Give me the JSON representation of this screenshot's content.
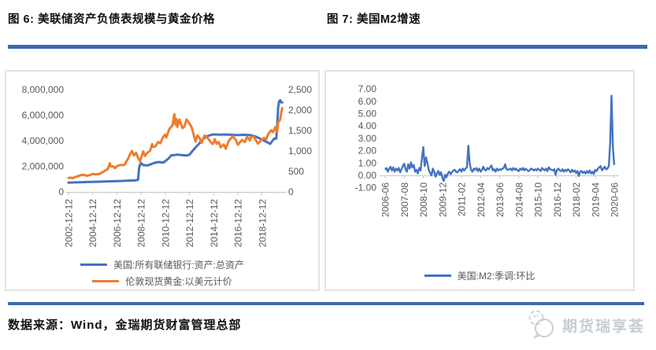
{
  "header": {
    "fig6_title": "图 6: 美联储资产负债表规模与黄金价格",
    "fig7_title": "图 7: 美国M2增速"
  },
  "footer": {
    "source": "数据来源：Wind，金瑞期货财富管理总部",
    "logo_text": "期货瑞享荟",
    "logo_icon": "megaphone-bubbles-icon"
  },
  "colors": {
    "divider_blue": "#3D68B0",
    "series_blue": "#4472C4",
    "series_orange": "#ED7D31",
    "axis_line": "#c6c6c6",
    "axis_text": "#595959",
    "logo_gray": "#c8cdd4"
  },
  "chart_data": [
    {
      "type": "line",
      "title": "图 6: 美联储资产负债表规模与黄金价格",
      "grid": false,
      "legend_position": "bottom",
      "x_range": [
        "2002-12",
        "2020-08"
      ],
      "x_tick_labels": [
        "2002-12-12",
        "2004-12-12",
        "2006-12-12",
        "2008-12-12",
        "2010-12-12",
        "2012-12-12",
        "2014-12-12",
        "2016-12-12",
        "2018-12-12"
      ],
      "y_left": {
        "range": [
          0,
          8000000
        ],
        "ticks": [
          "0",
          "2,000,000",
          "4,000,000",
          "6,000,000",
          "8,000,000"
        ]
      },
      "y_right": {
        "range": [
          0,
          2500
        ],
        "ticks": [
          "0",
          "500",
          "1,000",
          "1,500",
          "2,000",
          "2,500"
        ]
      },
      "series": [
        {
          "name": "美国:所有联储银行:资产:总资产",
          "color": "#4472C4",
          "axis": "left",
          "points": [
            [
              "2002-12",
              725000
            ],
            [
              "2003-06",
              745000
            ],
            [
              "2003-12",
              760000
            ],
            [
              "2004-06",
              775000
            ],
            [
              "2004-12",
              790000
            ],
            [
              "2005-06",
              800000
            ],
            [
              "2005-12",
              815000
            ],
            [
              "2006-06",
              830000
            ],
            [
              "2006-12",
              850000
            ],
            [
              "2007-06",
              860000
            ],
            [
              "2007-12",
              885000
            ],
            [
              "2008-03",
              890000
            ],
            [
              "2008-06",
              900000
            ],
            [
              "2008-09",
              950000
            ],
            [
              "2008-10",
              1850000
            ],
            [
              "2008-11",
              2150000
            ],
            [
              "2008-12",
              2250000
            ],
            [
              "2009-02",
              2100000
            ],
            [
              "2009-04",
              2090000
            ],
            [
              "2009-06",
              2070000
            ],
            [
              "2009-09",
              2140000
            ],
            [
              "2009-12",
              2240000
            ],
            [
              "2010-03",
              2310000
            ],
            [
              "2010-06",
              2340000
            ],
            [
              "2010-09",
              2300000
            ],
            [
              "2010-11",
              2330000
            ],
            [
              "2010-12",
              2420000
            ],
            [
              "2011-02",
              2530000
            ],
            [
              "2011-04",
              2690000
            ],
            [
              "2011-06",
              2870000
            ],
            [
              "2011-09",
              2880000
            ],
            [
              "2011-12",
              2920000
            ],
            [
              "2012-03",
              2890000
            ],
            [
              "2012-06",
              2870000
            ],
            [
              "2012-09",
              2850000
            ],
            [
              "2012-12",
              2910000
            ],
            [
              "2013-03",
              3200000
            ],
            [
              "2013-06",
              3480000
            ],
            [
              "2013-09",
              3720000
            ],
            [
              "2013-12",
              4020000
            ],
            [
              "2014-03",
              4230000
            ],
            [
              "2014-06",
              4370000
            ],
            [
              "2014-09",
              4450000
            ],
            [
              "2014-12",
              4500000
            ],
            [
              "2015-06",
              4480000
            ],
            [
              "2015-12",
              4490000
            ],
            [
              "2016-06",
              4470000
            ],
            [
              "2016-12",
              4450000
            ],
            [
              "2017-06",
              4470000
            ],
            [
              "2017-12",
              4450000
            ],
            [
              "2018-03",
              4390000
            ],
            [
              "2018-06",
              4320000
            ],
            [
              "2018-09",
              4210000
            ],
            [
              "2018-12",
              4080000
            ],
            [
              "2019-03",
              3970000
            ],
            [
              "2019-06",
              3850000
            ],
            [
              "2019-08",
              3760000
            ],
            [
              "2019-10",
              3970000
            ],
            [
              "2019-12",
              4170000
            ],
            [
              "2020-02",
              4160000
            ],
            [
              "2020-03",
              5250000
            ],
            [
              "2020-04",
              6600000
            ],
            [
              "2020-05",
              7100000
            ],
            [
              "2020-06",
              7170000
            ],
            [
              "2020-07",
              7010000
            ],
            [
              "2020-08",
              7000000
            ]
          ]
        },
        {
          "name": "伦敦现货黄金:以美元计价",
          "color": "#ED7D31",
          "axis": "right",
          "points": [
            [
              "2002-12",
              340
            ],
            [
              "2003-02",
              350
            ],
            [
              "2003-04",
              330
            ],
            [
              "2003-06",
              360
            ],
            [
              "2003-09",
              380
            ],
            [
              "2003-12",
              410
            ],
            [
              "2004-03",
              420
            ],
            [
              "2004-06",
              395
            ],
            [
              "2004-09",
              410
            ],
            [
              "2004-12",
              440
            ],
            [
              "2005-03",
              430
            ],
            [
              "2005-06",
              435
            ],
            [
              "2005-09",
              470
            ],
            [
              "2005-12",
              515
            ],
            [
              "2006-03",
              560
            ],
            [
              "2006-05",
              700
            ],
            [
              "2006-06",
              620
            ],
            [
              "2006-08",
              630
            ],
            [
              "2006-10",
              580
            ],
            [
              "2006-12",
              630
            ],
            [
              "2007-03",
              655
            ],
            [
              "2007-06",
              655
            ],
            [
              "2007-08",
              670
            ],
            [
              "2007-09",
              730
            ],
            [
              "2007-11",
              810
            ],
            [
              "2008-01",
              920
            ],
            [
              "2008-03",
              1000
            ],
            [
              "2008-05",
              890
            ],
            [
              "2008-07",
              960
            ],
            [
              "2008-09",
              830
            ],
            [
              "2008-11",
              750
            ],
            [
              "2009-01",
              900
            ],
            [
              "2009-02",
              990
            ],
            [
              "2009-04",
              880
            ],
            [
              "2009-06",
              950
            ],
            [
              "2009-09",
              1010
            ],
            [
              "2009-11",
              1170
            ],
            [
              "2009-12",
              1100
            ],
            [
              "2010-02",
              1110
            ],
            [
              "2010-05",
              1220
            ],
            [
              "2010-07",
              1190
            ],
            [
              "2010-10",
              1350
            ],
            [
              "2010-12",
              1400
            ],
            [
              "2011-01",
              1330
            ],
            [
              "2011-04",
              1540
            ],
            [
              "2011-07",
              1620
            ],
            [
              "2011-09",
              1900
            ],
            [
              "2011-10",
              1650
            ],
            [
              "2011-11",
              1780
            ],
            [
              "2011-12",
              1590
            ],
            [
              "2012-02",
              1770
            ],
            [
              "2012-05",
              1560
            ],
            [
              "2012-07",
              1600
            ],
            [
              "2012-09",
              1770
            ],
            [
              "2012-11",
              1710
            ],
            [
              "2012-12",
              1670
            ],
            [
              "2013-02",
              1590
            ],
            [
              "2013-04",
              1420
            ],
            [
              "2013-06",
              1230
            ],
            [
              "2013-08",
              1380
            ],
            [
              "2013-10",
              1320
            ],
            [
              "2013-12",
              1200
            ],
            [
              "2014-03",
              1380
            ],
            [
              "2014-06",
              1320
            ],
            [
              "2014-09",
              1220
            ],
            [
              "2014-11",
              1170
            ],
            [
              "2014-12",
              1200
            ],
            [
              "2015-01",
              1290
            ],
            [
              "2015-03",
              1180
            ],
            [
              "2015-05",
              1220
            ],
            [
              "2015-07",
              1090
            ],
            [
              "2015-10",
              1160
            ],
            [
              "2015-12",
              1060
            ],
            [
              "2016-03",
              1250
            ],
            [
              "2016-07",
              1360
            ],
            [
              "2016-10",
              1270
            ],
            [
              "2016-12",
              1150
            ],
            [
              "2017-04",
              1270
            ],
            [
              "2017-07",
              1220
            ],
            [
              "2017-09",
              1350
            ],
            [
              "2017-12",
              1260
            ],
            [
              "2018-01",
              1350
            ],
            [
              "2018-04",
              1340
            ],
            [
              "2018-08",
              1180
            ],
            [
              "2018-10",
              1230
            ],
            [
              "2018-12",
              1280
            ],
            [
              "2019-02",
              1320
            ],
            [
              "2019-04",
              1280
            ],
            [
              "2019-06",
              1410
            ],
            [
              "2019-09",
              1510
            ],
            [
              "2019-11",
              1460
            ],
            [
              "2020-01",
              1580
            ],
            [
              "2020-03",
              1470
            ],
            [
              "2020-04",
              1700
            ],
            [
              "2020-05",
              1730
            ],
            [
              "2020-06",
              1770
            ],
            [
              "2020-07",
              1950
            ],
            [
              "2020-08",
              2050
            ]
          ]
        }
      ]
    },
    {
      "type": "line",
      "title": "图 7: 美国M2增速",
      "grid": false,
      "legend_position": "bottom",
      "x_start": "2006-06",
      "x_tick_labels": [
        "2006-06",
        "2007-08",
        "2008-10",
        "2009-12",
        "2011-02",
        "2012-04",
        "2013-06",
        "2014-08",
        "2015-10",
        "2016-12",
        "2018-02",
        "2019-04",
        "2020-06"
      ],
      "y": {
        "range": [
          -1,
          7
        ],
        "ticks": [
          "7.00",
          "6.00",
          "5.00",
          "4.00",
          "3.00",
          "2.00",
          "1.00",
          "0.00",
          "-1.00"
        ]
      },
      "series": [
        {
          "name": "美国:M2:季调:环比",
          "color": "#4472C4",
          "values": [
            0.45,
            0.6,
            0.3,
            0.55,
            0.7,
            0.4,
            0.65,
            0.3,
            0.55,
            0.4,
            0.6,
            0.25,
            0.5,
            0.75,
            0.95,
            0.5,
            0.3,
            0.9,
            0.55,
            1.05,
            0.65,
            0.85,
            0.3,
            0.45,
            0.15,
            0.6,
            0.4,
            1.4,
            2.3,
            0.75,
            1.45,
            1.0,
            0.45,
            0.2,
            0.0,
            0.55,
            0.3,
            -0.1,
            0.15,
            0.35,
            0.05,
            0.25,
            -0.2,
            -0.45,
            0.05,
            -0.15,
            0.15,
            0.3,
            0.1,
            0.25,
            0.4,
            0.45,
            0.3,
            0.25,
            0.4,
            0.5,
            0.3,
            0.55,
            0.4,
            0.55,
            0.65,
            2.4,
            1.0,
            0.45,
            0.3,
            0.55,
            0.45,
            0.6,
            0.35,
            0.55,
            0.3,
            0.45,
            0.7,
            0.45,
            0.4,
            0.6,
            0.5,
            0.65,
            0.8,
            0.4,
            0.5,
            0.3,
            0.55,
            0.4,
            0.5,
            0.45,
            0.55,
            0.6,
            0.9,
            0.5,
            0.45,
            0.5,
            0.55,
            0.4,
            0.6,
            0.45,
            0.55,
            0.4,
            0.35,
            0.55,
            0.45,
            0.6,
            0.4,
            0.55,
            0.45,
            0.35,
            0.4,
            0.55,
            0.5,
            0.4,
            0.5,
            0.4,
            0.55,
            0.45,
            0.35,
            0.6,
            0.5,
            0.4,
            0.55,
            0.35,
            0.65,
            0.5,
            0.45,
            0.4,
            0.5,
            0.05,
            0.45,
            0.55,
            0.4,
            0.35,
            0.5,
            0.3,
            0.45,
            0.35,
            0.5,
            0.4,
            0.25,
            0.45,
            0.3,
            0.4,
            0.2,
            0.35,
            -0.05,
            0.3,
            0.35,
            0.2,
            0.3,
            0.15,
            0.35,
            0.2,
            0.4,
            0.15,
            0.3,
            0.1,
            0.45,
            0.35,
            0.55,
            0.65,
            0.75,
            0.4,
            0.55,
            0.7,
            0.5,
            0.55,
            0.75,
            2.6,
            6.45,
            2.2,
            0.85
          ]
        }
      ]
    }
  ]
}
